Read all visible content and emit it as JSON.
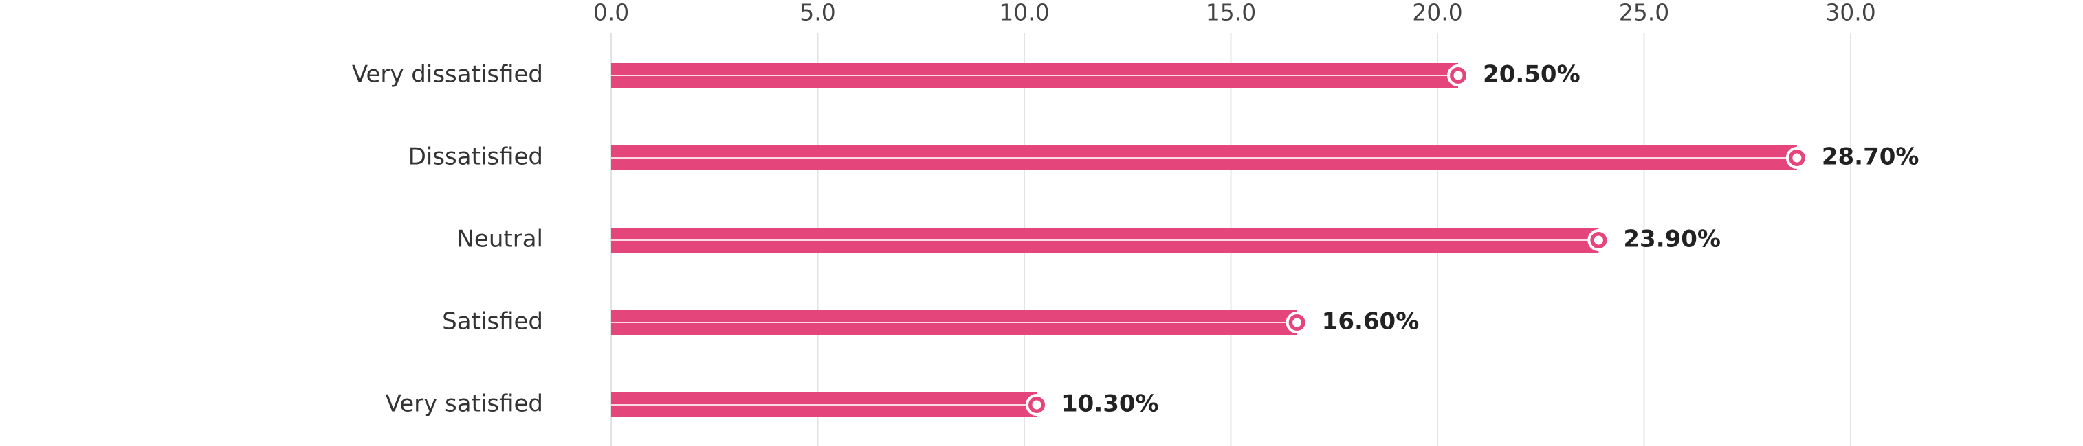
{
  "chart_data": {
    "type": "bar",
    "orientation": "horizontal",
    "categories": [
      "Very dissatisfied",
      "Dissatisfied",
      "Neutral",
      "Satisfied",
      "Very satisfied"
    ],
    "values": [
      20.5,
      28.7,
      23.9,
      16.6,
      10.3
    ],
    "value_labels": [
      "20.50%",
      "28.70%",
      "23.90%",
      "16.60%",
      "10.30%"
    ],
    "color": "#e4457b",
    "xlim": [
      0,
      30
    ],
    "xticks": [
      {
        "value": 0,
        "label": "0.0"
      },
      {
        "value": 5,
        "label": "5.0"
      },
      {
        "value": 10,
        "label": "10.0"
      },
      {
        "value": 15,
        "label": "15.0"
      },
      {
        "value": 20,
        "label": "20.0"
      },
      {
        "value": 25,
        "label": "25.0"
      },
      {
        "value": 30,
        "label": "30.0"
      }
    ],
    "grid": true
  }
}
